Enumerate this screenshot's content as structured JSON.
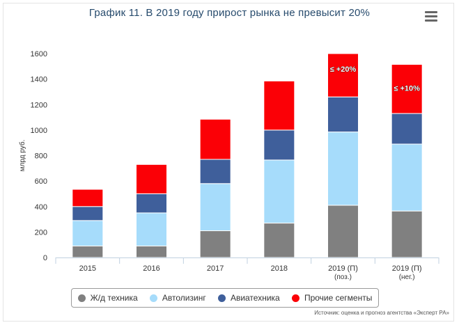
{
  "title": "График 11. В 2019 году прирост рынка не превысит 20%",
  "source": "Источник: оценка и прогноз агентства «Эксперт РА»",
  "chart_data": {
    "type": "bar",
    "stacked": true,
    "categories": [
      "2015",
      "2016",
      "2017",
      "2018",
      "2019 (П)|(поз.)",
      "2019 (П)|(нег.)"
    ],
    "ylabel": "млрд руб.",
    "ylim": [
      0,
      1600
    ],
    "yticks": [
      0,
      200,
      400,
      600,
      800,
      1000,
      1200,
      1400,
      1600
    ],
    "grid": false,
    "legend_position": "bottom",
    "series": [
      {
        "name": "Ж/д техника",
        "color": "#808080",
        "values": [
          90,
          90,
          210,
          270,
          410,
          365
        ]
      },
      {
        "name": "Автолизинг",
        "color": "#a6dcfb",
        "values": [
          200,
          260,
          370,
          495,
          575,
          525
        ]
      },
      {
        "name": "Авиатехника",
        "color": "#3f5f9b",
        "values": [
          110,
          150,
          190,
          235,
          275,
          240
        ]
      },
      {
        "name": "Прочие сегменты",
        "color": "#fb0006",
        "values": [
          135,
          230,
          315,
          385,
          340,
          385
        ]
      }
    ],
    "annotations": [
      {
        "category_index": 4,
        "value": 1480,
        "text": "≤ +20%"
      },
      {
        "category_index": 5,
        "value": 1330,
        "text": "≤ +10%"
      }
    ]
  },
  "legend": [
    {
      "label": "Ж/д техника",
      "color": "#808080"
    },
    {
      "label": "Автолизинг",
      "color": "#a6dcfb"
    },
    {
      "label": "Авиатехника",
      "color": "#3f5f9b"
    },
    {
      "label": "Прочие сегменты",
      "color": "#fb0006"
    }
  ],
  "menu_icon": "hamburger-menu-icon"
}
